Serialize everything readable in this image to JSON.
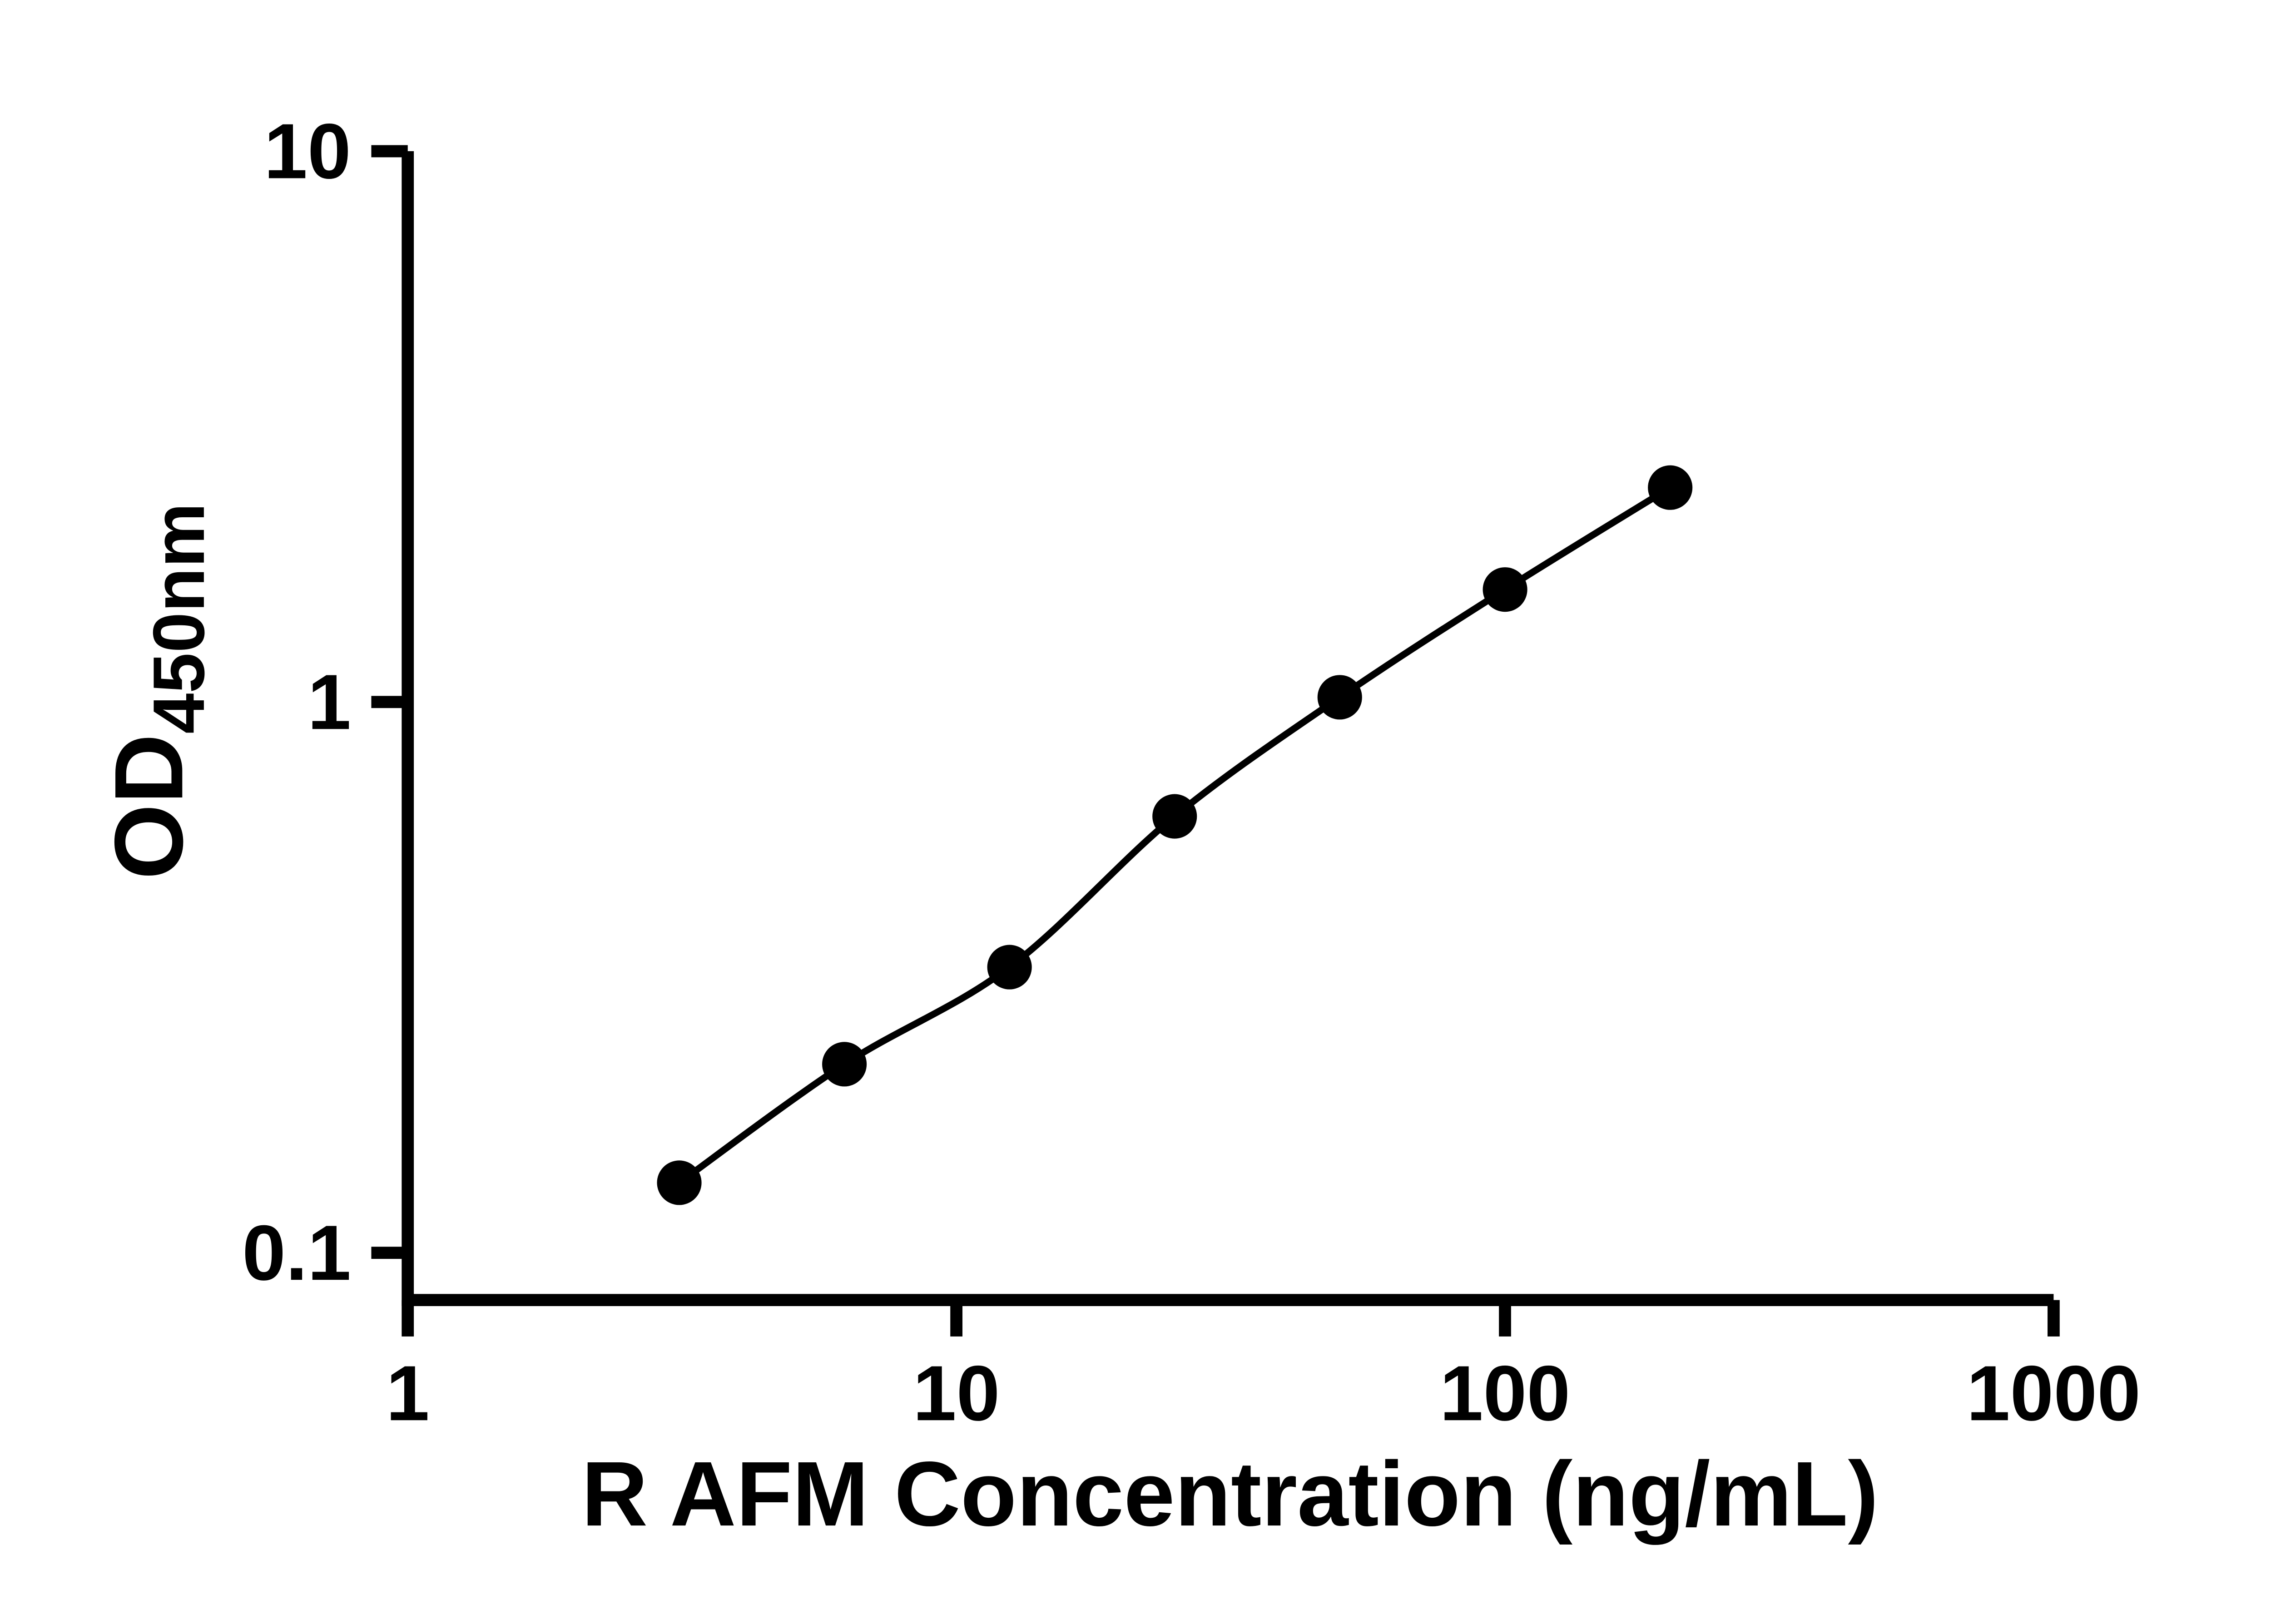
{
  "chart_data": {
    "type": "scatter",
    "title": "",
    "xlabel": "R AFM Concentration (ng/mL)",
    "ylabel": {
      "base": "OD",
      "subscript": "450nm"
    },
    "xscale": "log",
    "yscale": "log",
    "xlim": [
      1,
      1000
    ],
    "ylim": [
      0.1,
      10
    ],
    "grid": false,
    "legend": "none",
    "line_through_points": true,
    "x_ticks": {
      "values": [
        1,
        10,
        100,
        1000
      ],
      "labels": [
        "1",
        "10",
        "100",
        "1000"
      ]
    },
    "y_ticks": {
      "values": [
        0.1,
        1,
        10
      ],
      "labels": [
        "0.1",
        "1",
        "10"
      ]
    },
    "points": [
      {
        "x": 3.125,
        "y": 0.134
      },
      {
        "x": 6.25,
        "y": 0.22
      },
      {
        "x": 12.5,
        "y": 0.33
      },
      {
        "x": 25,
        "y": 0.62
      },
      {
        "x": 50,
        "y": 1.02
      },
      {
        "x": 100,
        "y": 1.6
      },
      {
        "x": 200,
        "y": 2.45
      }
    ],
    "axis_color": "#000000",
    "line_color": "#000000",
    "marker_color": "#000000",
    "background_color": "#ffffff"
  }
}
